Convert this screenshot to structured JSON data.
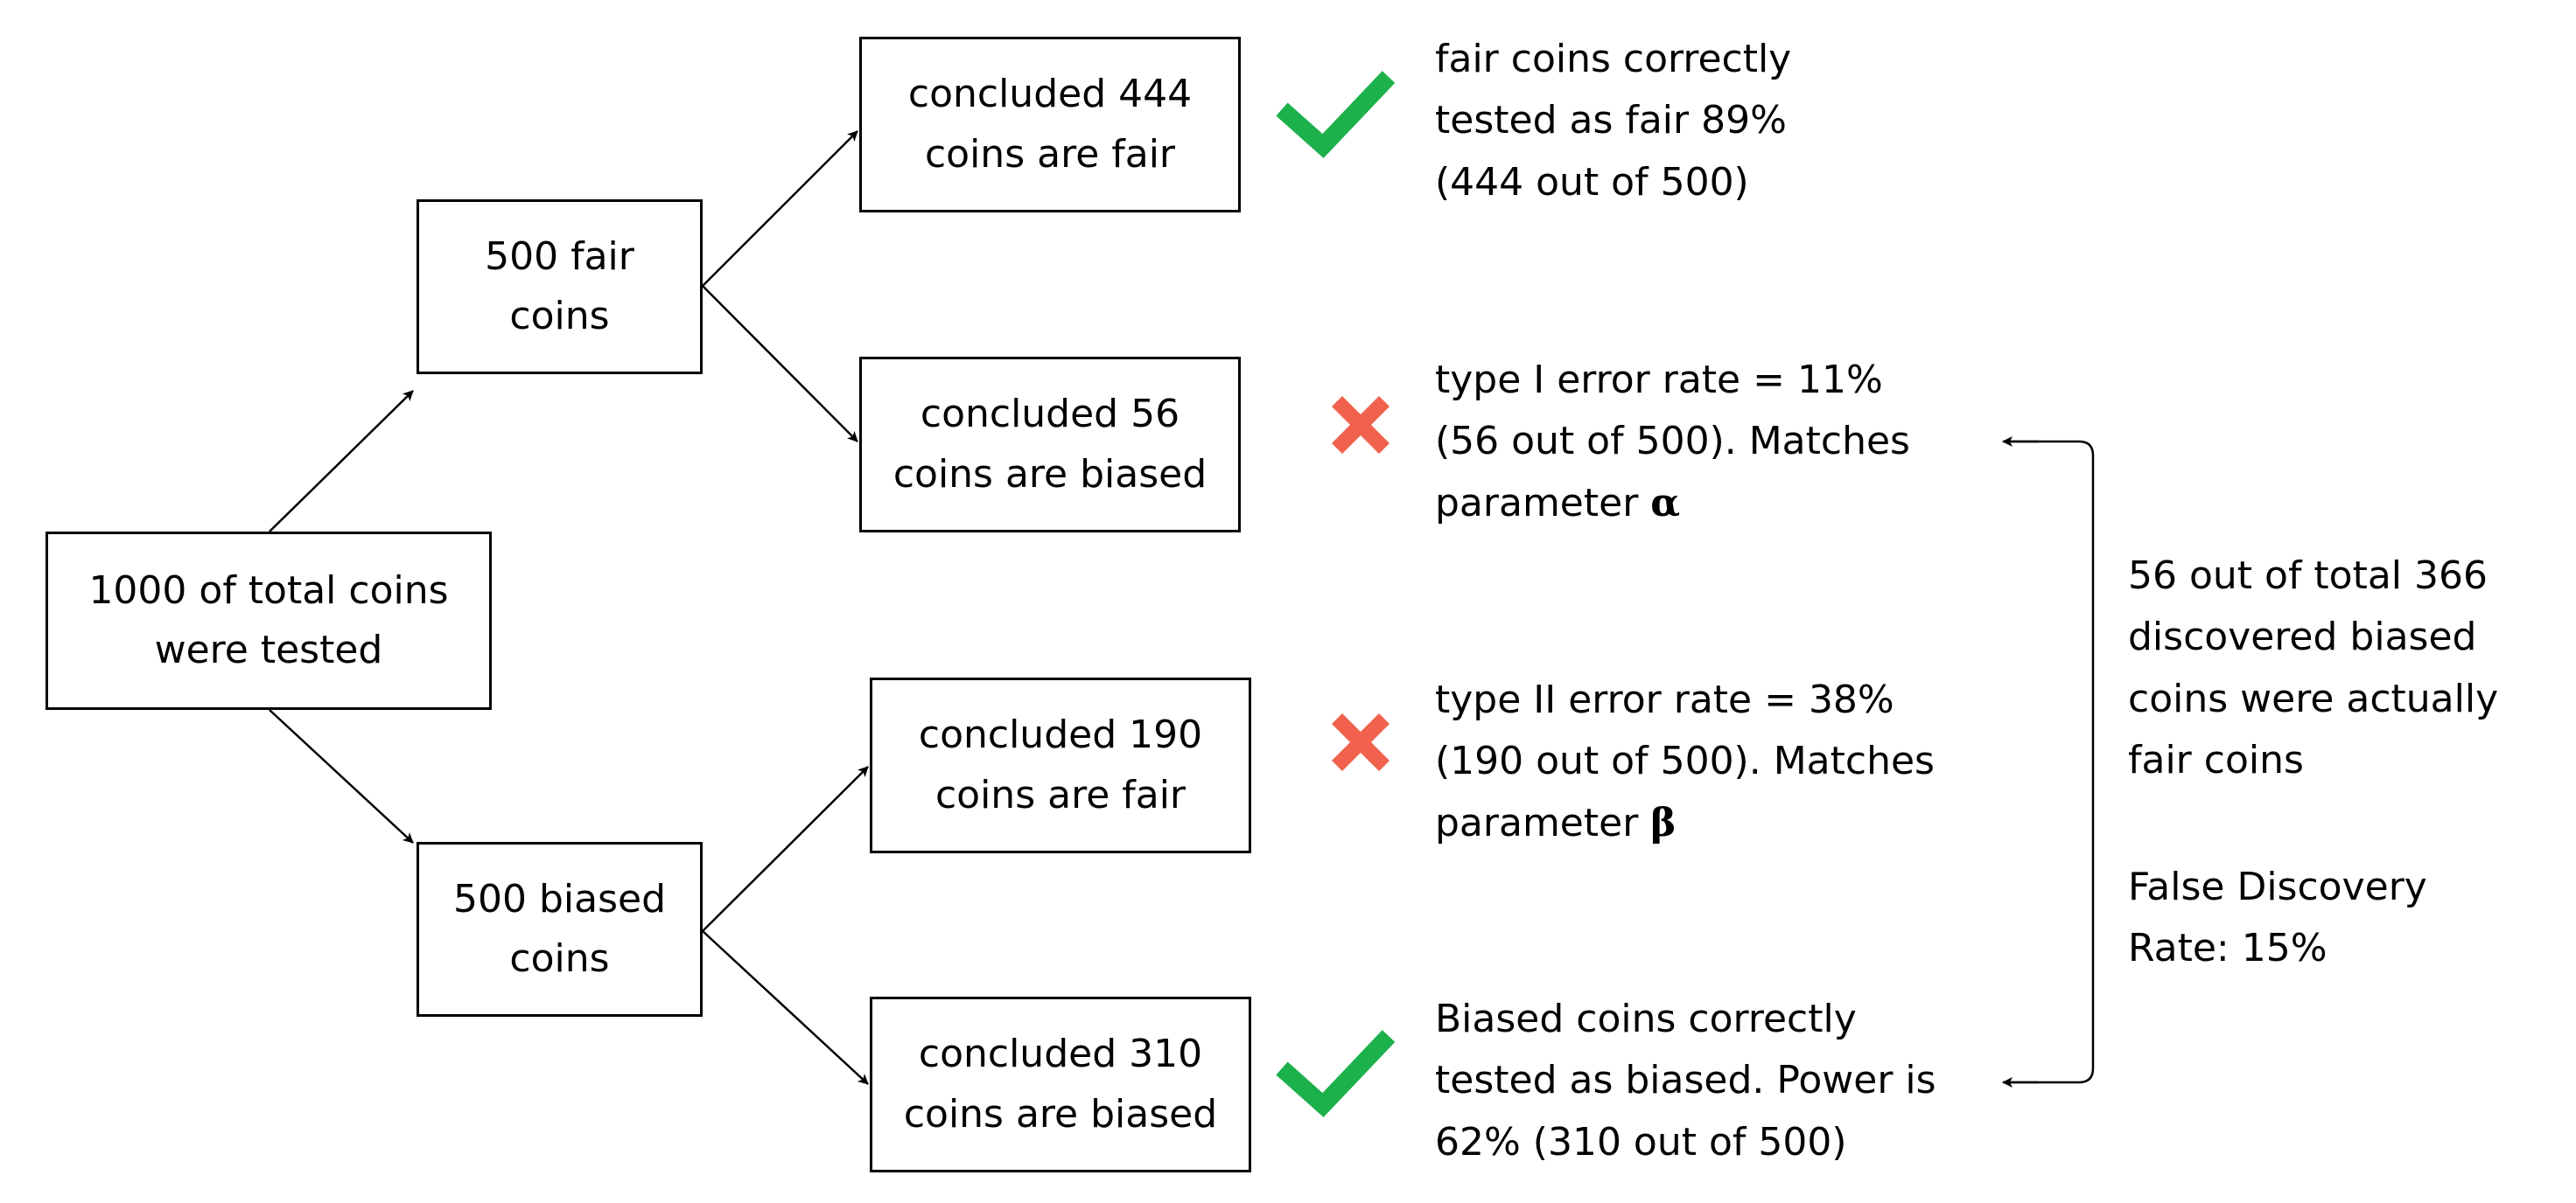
{
  "nodes": {
    "total": {
      "lines": [
        "1000 of total coins",
        "were tested"
      ]
    },
    "fair": {
      "lines": [
        "500 fair",
        "coins"
      ]
    },
    "biased": {
      "lines": [
        "500 biased",
        "coins"
      ]
    },
    "fair_fair": {
      "lines": [
        "concluded 444",
        "coins are fair"
      ]
    },
    "fair_biased": {
      "lines": [
        "concluded 56",
        "coins are biased"
      ]
    },
    "biased_fair": {
      "lines": [
        "concluded 190",
        "coins are fair"
      ]
    },
    "biased_biased": {
      "lines": [
        "concluded 310",
        "coins are biased"
      ]
    }
  },
  "notes": {
    "fair_fair": {
      "lines": [
        "fair coins correctly",
        "tested as fair 89%",
        "(444 out of 500)"
      ]
    },
    "fair_biased": {
      "line1": "type I error rate = 11%",
      "line2": "(56 out of 500). Matches",
      "line3_prefix": "parameter ",
      "symbol": "α"
    },
    "biased_fair": {
      "line1": "type II error rate = 38%",
      "line2": "(190 out of 500). Matches",
      "line3_prefix": "parameter ",
      "symbol": "β"
    },
    "biased_biased": {
      "lines": [
        "Biased coins correctly",
        "tested as biased. Power is",
        "62% (310 out of 500)"
      ]
    },
    "fdr": {
      "lines": [
        "56 out of total 366",
        "discovered biased",
        "coins were actually",
        "fair coins"
      ],
      "rate_lines": [
        "False Discovery",
        "Rate: 15%"
      ]
    }
  },
  "icons": {
    "check_color": "#1DB14B",
    "cross_color": "#F0624D"
  }
}
